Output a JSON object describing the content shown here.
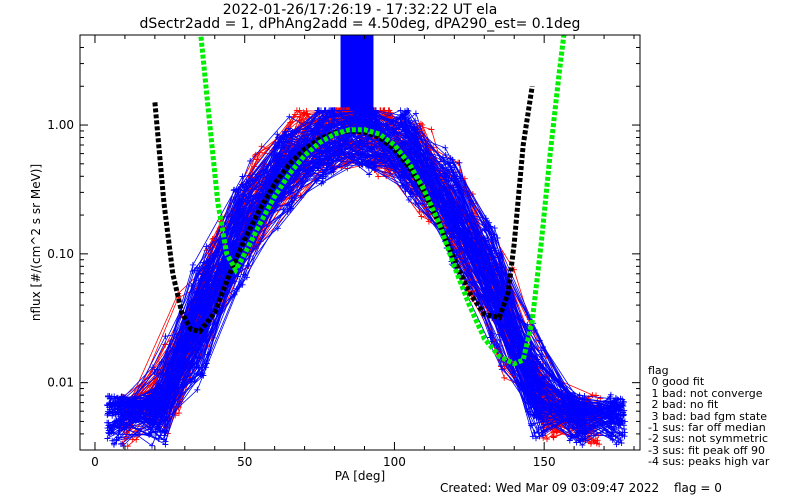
{
  "chart_data": {
    "type": "line",
    "title": "2022-01-26/17:26:19 - 17:32:22 UT ela",
    "subtitle": "dSectr2add = 1, dPhAng2add = 4.50deg, dPA290_est=   0.1deg",
    "xlabel": "PA [deg]",
    "ylabel": "nflux [#/(cm^2 s sr MeV)]",
    "xlim": [
      -5,
      182
    ],
    "ylim": [
      0.003,
      5.0
    ],
    "yscale": "log",
    "x_ticks": [
      0,
      50,
      100,
      150
    ],
    "x_tick_labels": [
      "0",
      "50",
      "100",
      "150"
    ],
    "y_ticks": [
      0.01,
      0.1,
      1.0
    ],
    "y_tick_labels": [
      "0.01",
      "0.10",
      "1.00"
    ],
    "grid": false,
    "series": [
      {
        "color": "#0000ff",
        "style": "thin lines with + markers",
        "representative_x": [
          7,
          21,
          35,
          49,
          63,
          77,
          91,
          105,
          119,
          133,
          147,
          161
        ],
        "representative_y": [
          0.006,
          0.009,
          0.03,
          0.12,
          0.35,
          0.7,
          0.9,
          0.7,
          0.3,
          0.06,
          0.012,
          0.005
        ]
      },
      {
        "color": "#ff0000",
        "style": "thin lines with + markers",
        "representative_x": [
          12,
          26,
          40,
          54,
          68,
          82,
          96,
          110,
          124,
          138,
          152,
          166
        ],
        "representative_y": [
          0.01,
          0.015,
          0.06,
          0.2,
          0.5,
          0.9,
          0.8,
          0.45,
          0.12,
          0.02,
          0.008,
          0.004
        ]
      },
      {
        "color": "#000000",
        "style": "thick dashed fit",
        "x": [
          20,
          23,
          26,
          29,
          32,
          35,
          40,
          45,
          50,
          55,
          60,
          65,
          70,
          75,
          80,
          85,
          90,
          95,
          100,
          105,
          110,
          115,
          120,
          125,
          130,
          135,
          138,
          140,
          143,
          146
        ],
        "y": [
          1.5,
          0.25,
          0.07,
          0.035,
          0.026,
          0.025,
          0.035,
          0.07,
          0.13,
          0.22,
          0.35,
          0.5,
          0.65,
          0.78,
          0.87,
          0.9,
          0.88,
          0.8,
          0.65,
          0.47,
          0.3,
          0.17,
          0.09,
          0.05,
          0.034,
          0.032,
          0.05,
          0.12,
          0.7,
          2.0
        ]
      },
      {
        "color": "#00ee00",
        "style": "thick dashed fit",
        "x": [
          35,
          38,
          41,
          44,
          47,
          50,
          55,
          60,
          65,
          70,
          75,
          80,
          85,
          90,
          95,
          100,
          105,
          110,
          115,
          120,
          125,
          130,
          135,
          140,
          143,
          146,
          149,
          152,
          155,
          157
        ],
        "y": [
          6.0,
          1.2,
          0.25,
          0.1,
          0.075,
          0.1,
          0.17,
          0.28,
          0.42,
          0.58,
          0.73,
          0.85,
          0.92,
          0.92,
          0.85,
          0.7,
          0.5,
          0.31,
          0.17,
          0.08,
          0.04,
          0.022,
          0.016,
          0.014,
          0.015,
          0.03,
          0.12,
          0.6,
          2.5,
          6.0
        ]
      },
      {
        "color": "#0000ff",
        "style": "filled vertical band (clipped above plot)",
        "x_range": [
          82,
          93
        ],
        "y_range": [
          0.9,
          5.0
        ]
      }
    ],
    "legend": {
      "title": "flag",
      "entries": [
        " 0 good fit",
        " 1 bad: not converge",
        " 2 bad: no fit",
        " 3 bad: bad fgm state",
        "-1 sus: far off median",
        "-2 sus: not symmetric",
        "-3 sus: fit peak off 90",
        "-4 sus: peaks high var"
      ],
      "placement": "right"
    },
    "footer": {
      "created": "Created: Wed Mar 09 03:09:47 2022",
      "flag": "flag = 0"
    }
  }
}
